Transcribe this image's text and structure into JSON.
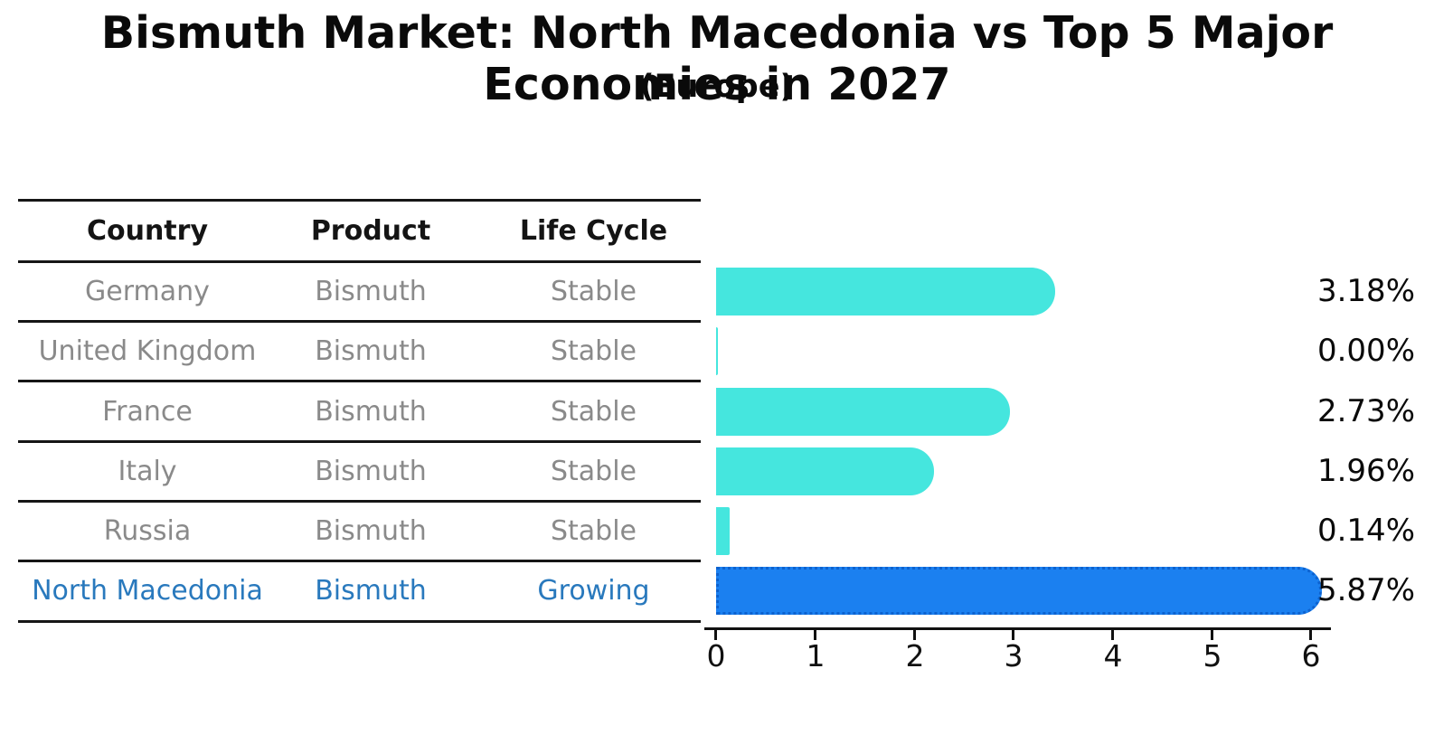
{
  "title": "Bismuth Market: North Macedonia vs Top 5 Major Economies in 2027",
  "subtitle": "(Europe)",
  "table": {
    "headers": [
      "Country",
      "Product",
      "Life Cycle"
    ],
    "rows": [
      {
        "country": "Germany",
        "product": "Bismuth",
        "life_cycle": "Stable",
        "highlight": false
      },
      {
        "country": "United Kingdom",
        "product": "Bismuth",
        "life_cycle": "Stable",
        "highlight": false
      },
      {
        "country": "France",
        "product": "Bismuth",
        "life_cycle": "Stable",
        "highlight": false
      },
      {
        "country": "Italy",
        "product": "Bismuth",
        "life_cycle": "Stable",
        "highlight": false
      },
      {
        "country": "Russia",
        "product": "Bismuth",
        "life_cycle": "Stable",
        "highlight": false
      },
      {
        "country": "North Macedonia",
        "product": "Bismuth",
        "life_cycle": "Growing",
        "highlight": true
      }
    ]
  },
  "chart_data": {
    "type": "bar",
    "orientation": "horizontal",
    "title": "Bismuth Market: North Macedonia vs Top 5 Major Economies in 2027 (Europe)",
    "categories": [
      "Germany",
      "United Kingdom",
      "France",
      "Italy",
      "Russia",
      "North Macedonia"
    ],
    "values": [
      3.18,
      0.0,
      2.73,
      1.96,
      0.14,
      5.87
    ],
    "value_labels": [
      "3.18%",
      "0.00%",
      "2.73%",
      "1.96%",
      "0.14%",
      "5.87%"
    ],
    "xlabel": "",
    "ylabel": "",
    "xlim": [
      0,
      6
    ],
    "x_ticks": [
      "0",
      "1",
      "2",
      "3",
      "4",
      "5",
      "6"
    ],
    "grid": false,
    "legend": false,
    "bar_color": "#45e6de",
    "highlight_color": "#1b80f0",
    "highlight_index": 5,
    "highlight_border_style": "dotted"
  },
  "colors": {
    "background": "#ffffff",
    "table_line": "#161616",
    "row_text": "#8a8a8a",
    "header_text": "#141414",
    "highlight_text": "#2979bd",
    "axis": "#111111"
  }
}
